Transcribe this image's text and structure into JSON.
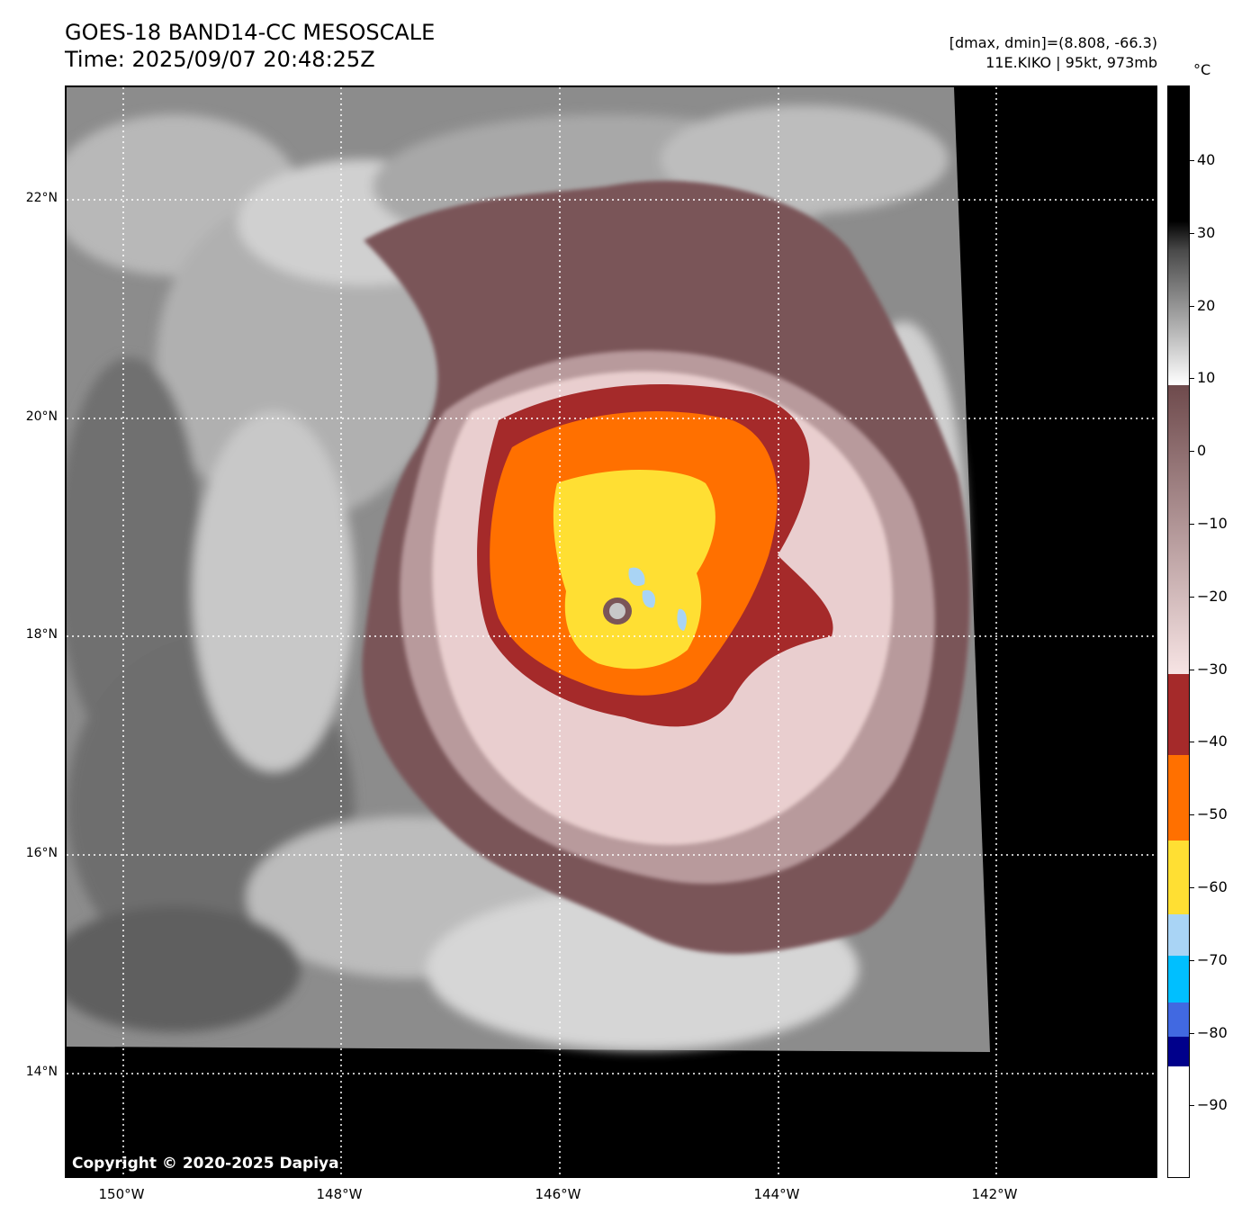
{
  "header": {
    "title_line1": "GOES-18 BAND14-CC MESOSCALE",
    "title_line2": "Time: 2025/09/07 20:48:25Z",
    "info_line1": "[dmax, dmin]=(8.808, -66.3)",
    "info_line2": "11E.KIKO | 95kt, 973mb"
  },
  "map": {
    "lat_labels": [
      "22°N",
      "20°N",
      "18°N",
      "16°N",
      "14°N"
    ],
    "lon_labels": [
      "150°W",
      "148°W",
      "146°W",
      "144°W",
      "142°W"
    ],
    "copyright": "Copyright © 2020-2025 Dapiya"
  },
  "colorbar": {
    "unit": "°C",
    "ticks": [
      "40",
      "30",
      "20",
      "10",
      "0",
      "−10",
      "−20",
      "−30",
      "−40",
      "−50",
      "−60",
      "−70",
      "−80",
      "−90"
    ],
    "colors": {
      "gray_warm": "#000000",
      "gray_cold": "#ffffff",
      "brown": "#7a5558",
      "pink": "#f2d8d8",
      "dark_red": "#a52a2a",
      "orange": "#ff7000",
      "yellow": "#ffdf33",
      "light_blue": "#a9d4f5",
      "cyan": "#00bfff",
      "royal_blue": "#4169e1",
      "navy": "#00008b",
      "white": "#ffffff"
    }
  }
}
